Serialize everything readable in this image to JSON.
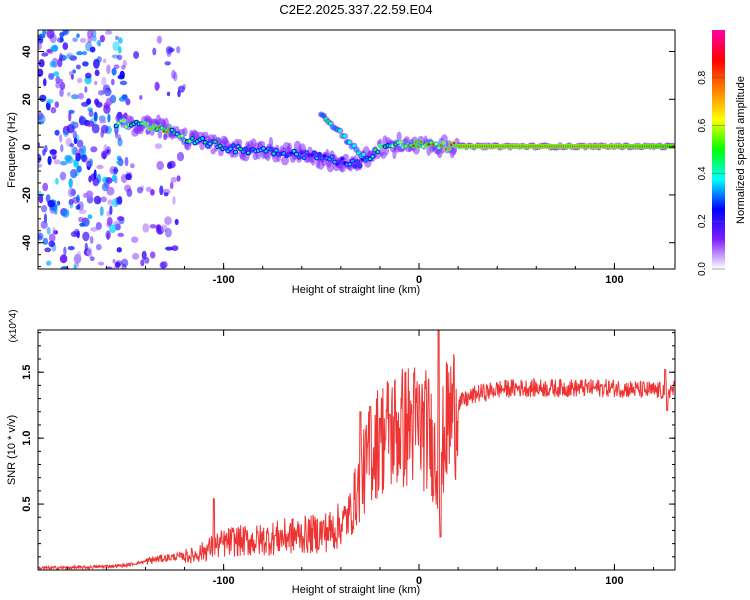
{
  "figure_title": "C2E2.2025.337.22.59.E04",
  "chart_data": [
    {
      "type": "heatmap",
      "title": "C2E2.2025.337.22.59.E04",
      "xlabel": "Height of straight line (km)",
      "ylabel": "Frequency (Hz)",
      "xlim": [
        -195,
        131
      ],
      "ylim": [
        -51,
        49
      ],
      "x_ticks": [
        -100,
        0,
        100
      ],
      "x_tick_labels": [
        "-100",
        "0",
        "100"
      ],
      "y_ticks": [
        -40,
        -20,
        0,
        20,
        40
      ],
      "y_tick_labels": [
        "-40",
        "-20",
        "0",
        "20",
        "40"
      ],
      "colorbar": {
        "label": "Normalized spectral amplitude",
        "range": [
          0,
          1
        ],
        "ticks": [
          0.0,
          0.2,
          0.4,
          0.6,
          0.8
        ],
        "tick_labels": [
          "0.0",
          "0.2",
          "0.4",
          "0.6",
          "0.8"
        ],
        "colors": [
          "#ffffff",
          "#7b1fff",
          "#0000ff",
          "#00ffff",
          "#00ff00",
          "#ffff00",
          "#ff8000",
          "#ff0000",
          "#ff00aa"
        ]
      },
      "ridge": {
        "description": "dominant spectral ridge (center frequency vs height)",
        "x": [
          -155,
          -140,
          -130,
          -120,
          -110,
          -100,
          -90,
          -80,
          -70,
          -60,
          -50,
          -40,
          -30,
          -20,
          -10,
          0,
          10,
          20,
          50,
          100,
          131
        ],
        "y": [
          10,
          9,
          8,
          4,
          2,
          0,
          -1,
          -1,
          -2,
          -3,
          -4,
          -6,
          -7,
          0,
          1,
          1,
          0.5,
          0.3,
          0.3,
          0.3,
          0.3
        ],
        "amplitude": [
          0.6,
          0.7,
          0.8,
          0.55,
          0.5,
          0.45,
          0.45,
          0.45,
          0.4,
          0.4,
          0.35,
          0.35,
          0.3,
          0.7,
          0.8,
          0.9,
          0.95,
          1.0,
          1.0,
          1.0,
          0.95
        ]
      },
      "side_branch": {
        "x": [
          -50,
          -44,
          -38,
          -32,
          -26
        ],
        "y": [
          14,
          9,
          4,
          -1,
          -6
        ]
      },
      "noise_region": {
        "x_range": [
          -195,
          -120
        ],
        "y_range": [
          -51,
          49
        ],
        "amplitude": 0.3
      }
    },
    {
      "type": "line",
      "xlabel": "Height of straight line (km)",
      "ylabel": "SNR (10 * v/v)",
      "y_multiplier": "(x10^4)",
      "xlim": [
        -195,
        131
      ],
      "ylim": [
        0,
        18200
      ],
      "x_ticks": [
        -100,
        0,
        100
      ],
      "x_tick_labels": [
        "-100",
        "0",
        "100"
      ],
      "y_ticks": [
        5000,
        10000,
        15000
      ],
      "y_tick_labels": [
        "0.5",
        "1.0",
        "1.5"
      ],
      "color": "#ee3333",
      "series": [
        {
          "name": "SNR",
          "x": [
            -195,
            -170,
            -150,
            -135,
            -125,
            -115,
            -105,
            -95,
            -85,
            -75,
            -65,
            -55,
            -45,
            -40,
            -35,
            -32,
            -28,
            -25,
            -22,
            -18,
            -15,
            -10,
            -5,
            0,
            5,
            8,
            10,
            11,
            12,
            14,
            17,
            20,
            25,
            30,
            35,
            40,
            50,
            60,
            80,
            100,
            120,
            125,
            131
          ],
          "values": [
            150,
            200,
            350,
            800,
            1000,
            1100,
            1800,
            2200,
            2200,
            2400,
            2600,
            2700,
            3000,
            3400,
            4300,
            5800,
            7500,
            8800,
            9600,
            10200,
            10500,
            10700,
            11000,
            11000,
            10400,
            8800,
            6000,
            3500,
            9500,
            11000,
            12000,
            12600,
            13000,
            13400,
            13500,
            13700,
            13800,
            13800,
            13800,
            13800,
            13600,
            13600,
            13700
          ],
          "spikes": [
            {
              "x": -105,
              "value": 5400
            },
            {
              "x": -30,
              "value": 12000
            },
            {
              "x": -25,
              "value": 12400
            },
            {
              "x": -20,
              "value": 11500
            },
            {
              "x": -15,
              "value": 11800
            },
            {
              "x": 10,
              "value": 18200
            },
            {
              "x": 11,
              "value": 2500
            },
            {
              "x": 127,
              "value": 12100
            },
            {
              "x": 126,
              "value": 15200
            }
          ]
        }
      ]
    }
  ]
}
